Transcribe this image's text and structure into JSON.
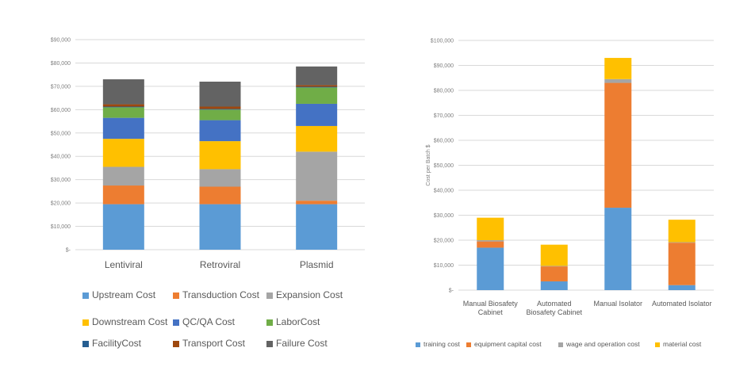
{
  "chart_data": [
    {
      "type": "bar",
      "stacked": true,
      "categories": [
        "Lentiviral",
        "Retroviral",
        "Plasmid"
      ],
      "ylim": [
        0,
        90000
      ],
      "yticks": [
        0,
        10000,
        20000,
        30000,
        40000,
        50000,
        60000,
        70000,
        80000,
        90000
      ],
      "ytick_labels": [
        "$-",
        "$10,000",
        "$20,000",
        "$30,000",
        "$40,000",
        "$50,000",
        "$60,000",
        "$70,000",
        "$80,000",
        "$90,000"
      ],
      "grid": true,
      "legend_position": "bottom",
      "series": [
        {
          "name": "Upstream Cost",
          "color": "#5b9bd5",
          "values": [
            19500,
            19500,
            19500
          ]
        },
        {
          "name": "Transduction Cost",
          "color": "#ed7d31",
          "values": [
            8000,
            7500,
            1500
          ]
        },
        {
          "name": "Expansion Cost",
          "color": "#a5a5a5",
          "values": [
            8000,
            7500,
            21000
          ]
        },
        {
          "name": "Downstream Cost",
          "color": "#ffc000",
          "values": [
            12000,
            12000,
            11000
          ]
        },
        {
          "name": "QC/QA Cost",
          "color": "#4472c4",
          "values": [
            9000,
            9000,
            9500
          ]
        },
        {
          "name": "LaborCost",
          "color": "#70ad47",
          "values": [
            4500,
            4500,
            7000
          ]
        },
        {
          "name": "FacilityCost",
          "color": "#255e91",
          "values": [
            300,
            300,
            300
          ]
        },
        {
          "name": "Transport Cost",
          "color": "#9e480e",
          "values": [
            1000,
            1000,
            700
          ]
        },
        {
          "name": "Failure Cost",
          "color": "#636363",
          "values": [
            10700,
            10700,
            8000
          ]
        }
      ]
    },
    {
      "type": "bar",
      "stacked": true,
      "categories": [
        "Manual Biosafety Cabinet",
        "Automated Biosafety Cabinet",
        "Manual Isolator",
        "Automated Isolator"
      ],
      "ylabel": "Cost per Batch $",
      "ylim": [
        0,
        100000
      ],
      "yticks": [
        0,
        10000,
        20000,
        30000,
        40000,
        50000,
        60000,
        70000,
        80000,
        90000,
        100000
      ],
      "ytick_labels": [
        "$-",
        "$10,000",
        "$20,000",
        "$30,000",
        "$40,000",
        "$50,000",
        "$60,000",
        "$70,000",
        "$80,000",
        "$90,000",
        "$100,000"
      ],
      "grid": true,
      "legend_position": "bottom",
      "series": [
        {
          "name": "training cost",
          "color": "#5b9bd5",
          "values": [
            17000,
            3500,
            33000,
            2000
          ]
        },
        {
          "name": "equipment capital cost",
          "color": "#ed7d31",
          "values": [
            2500,
            6000,
            50000,
            17000
          ]
        },
        {
          "name": "wage and operation cost",
          "color": "#a5a5a5",
          "values": [
            500,
            200,
            1500,
            200
          ]
        },
        {
          "name": "material cost",
          "color": "#ffc000",
          "values": [
            9000,
            8500,
            8500,
            9000
          ]
        }
      ]
    }
  ]
}
